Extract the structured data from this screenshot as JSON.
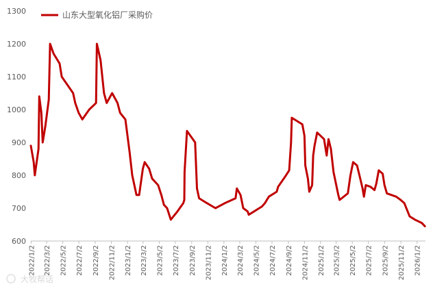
{
  "chart_data": {
    "type": "line",
    "title": "",
    "xlabel": "",
    "ylabel": "",
    "ylim": [
      600,
      1300
    ],
    "yticks": [
      600,
      700,
      800,
      900,
      1000,
      1100,
      1200,
      1300
    ],
    "xlim": [
      "2022-01-01",
      "2026-02-03"
    ],
    "xtick_labels": [
      "2022/1/2",
      "2022/3/2",
      "2022/5/2",
      "2022/7/2",
      "2022/9/2",
      "2022/11/2",
      "2023/1/2",
      "2023/3/2",
      "2023/5/2",
      "2023/7/2",
      "2023/9/2",
      "2023/11/2",
      "2024/1/2",
      "2024/3/2",
      "2024/5/2",
      "2024/7/2",
      "2024/9/2",
      "2024/11/2",
      "2025/1/2",
      "2025/3/2",
      "2025/5/2",
      "2025/7/2",
      "2025/9/2",
      "2025/11/2",
      "2026/1/2"
    ],
    "legend": {
      "position": "top-left"
    },
    "grid": false,
    "series": [
      {
        "name": "山东大型氧化铝厂采购价",
        "color": "#c00000",
        "points": [
          [
            "2022-01-01",
            890
          ],
          [
            "2022-01-12",
            840
          ],
          [
            "2022-01-16",
            800
          ],
          [
            "2022-01-30",
            880
          ],
          [
            "2022-02-02",
            1040
          ],
          [
            "2022-02-10",
            990
          ],
          [
            "2022-02-15",
            900
          ],
          [
            "2022-02-25",
            950
          ],
          [
            "2022-03-10",
            1030
          ],
          [
            "2022-03-15",
            1200
          ],
          [
            "2022-03-28",
            1170
          ],
          [
            "2022-04-20",
            1140
          ],
          [
            "2022-04-28",
            1100
          ],
          [
            "2022-06-10",
            1050
          ],
          [
            "2022-06-18",
            1020
          ],
          [
            "2022-07-01",
            990
          ],
          [
            "2022-07-15",
            970
          ],
          [
            "2022-08-10",
            1000
          ],
          [
            "2022-09-05",
            1020
          ],
          [
            "2022-09-08",
            1200
          ],
          [
            "2022-09-22",
            1150
          ],
          [
            "2022-10-05",
            1050
          ],
          [
            "2022-10-15",
            1020
          ],
          [
            "2022-11-05",
            1050
          ],
          [
            "2022-11-25",
            1020
          ],
          [
            "2022-12-05",
            990
          ],
          [
            "2022-12-25",
            970
          ],
          [
            "2023-01-10",
            870
          ],
          [
            "2023-01-20",
            800
          ],
          [
            "2023-02-05",
            740
          ],
          [
            "2023-02-15",
            740
          ],
          [
            "2023-03-01",
            820
          ],
          [
            "2023-03-08",
            840
          ],
          [
            "2023-03-25",
            820
          ],
          [
            "2023-04-05",
            790
          ],
          [
            "2023-04-28",
            770
          ],
          [
            "2023-05-10",
            740
          ],
          [
            "2023-05-20",
            710
          ],
          [
            "2023-06-01",
            700
          ],
          [
            "2023-06-15",
            665
          ],
          [
            "2023-07-10",
            690
          ],
          [
            "2023-08-01",
            715
          ],
          [
            "2023-08-05",
            725
          ],
          [
            "2023-08-06",
            810
          ],
          [
            "2023-08-15",
            935
          ],
          [
            "2023-09-15",
            900
          ],
          [
            "2023-09-22",
            760
          ],
          [
            "2023-09-30",
            730
          ],
          [
            "2023-10-20",
            720
          ],
          [
            "2023-12-01",
            700
          ],
          [
            "2024-01-05",
            715
          ],
          [
            "2024-02-15",
            730
          ],
          [
            "2024-02-20",
            760
          ],
          [
            "2024-03-05",
            740
          ],
          [
            "2024-03-15",
            700
          ],
          [
            "2024-04-01",
            690
          ],
          [
            "2024-04-05",
            680
          ],
          [
            "2024-04-25",
            690
          ],
          [
            "2024-05-25",
            705
          ],
          [
            "2024-06-05",
            715
          ],
          [
            "2024-06-20",
            735
          ],
          [
            "2024-07-20",
            750
          ],
          [
            "2024-07-25",
            765
          ],
          [
            "2024-08-20",
            795
          ],
          [
            "2024-09-05",
            815
          ],
          [
            "2024-09-12",
            900
          ],
          [
            "2024-09-15",
            975
          ],
          [
            "2024-10-25",
            955
          ],
          [
            "2024-11-02",
            920
          ],
          [
            "2024-11-05",
            830
          ],
          [
            "2024-11-15",
            790
          ],
          [
            "2024-11-20",
            750
          ],
          [
            "2024-12-01",
            770
          ],
          [
            "2024-12-05",
            860
          ],
          [
            "2024-12-10",
            890
          ],
          [
            "2024-12-20",
            930
          ],
          [
            "2025-01-15",
            910
          ],
          [
            "2025-01-25",
            860
          ],
          [
            "2025-02-01",
            910
          ],
          [
            "2025-02-10",
            880
          ],
          [
            "2025-02-20",
            810
          ],
          [
            "2025-03-10",
            740
          ],
          [
            "2025-03-15",
            725
          ],
          [
            "2025-04-15",
            745
          ],
          [
            "2025-04-25",
            800
          ],
          [
            "2025-05-05",
            840
          ],
          [
            "2025-05-20",
            830
          ],
          [
            "2025-06-01",
            790
          ],
          [
            "2025-06-10",
            760
          ],
          [
            "2025-06-15",
            735
          ],
          [
            "2025-06-22",
            770
          ],
          [
            "2025-07-10",
            765
          ],
          [
            "2025-07-25",
            755
          ],
          [
            "2025-08-01",
            775
          ],
          [
            "2025-08-10",
            815
          ],
          [
            "2025-08-25",
            805
          ],
          [
            "2025-09-01",
            770
          ],
          [
            "2025-09-10",
            745
          ],
          [
            "2025-10-15",
            735
          ],
          [
            "2025-11-01",
            725
          ],
          [
            "2025-11-15",
            715
          ],
          [
            "2025-12-05",
            675
          ],
          [
            "2025-12-25",
            665
          ],
          [
            "2026-01-20",
            655
          ],
          [
            "2026-02-01",
            645
          ]
        ]
      }
    ],
    "watermark": "大牧帮话"
  }
}
